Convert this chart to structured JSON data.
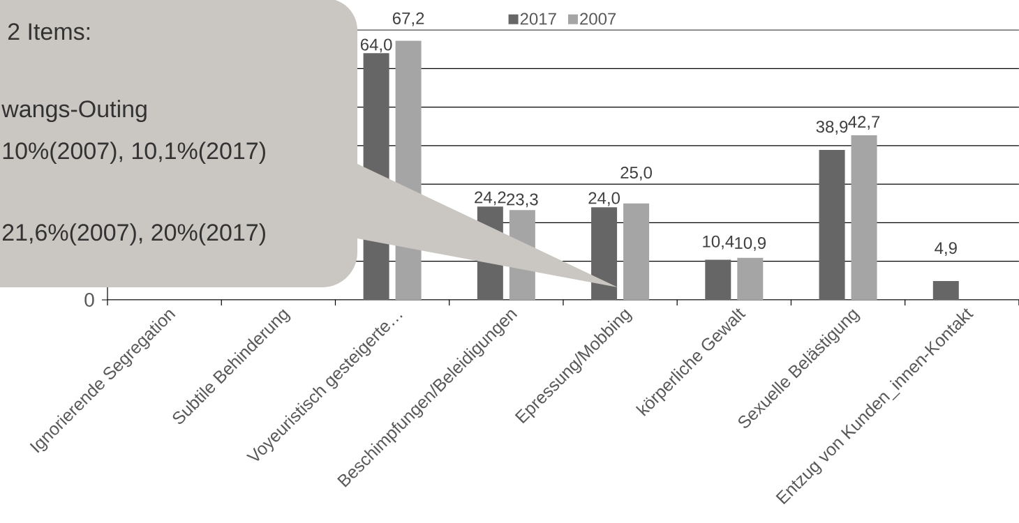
{
  "chart_data": {
    "type": "bar",
    "annotations": [
      "2 Items:",
      "wangs-Outing",
      "10%(2007), 10,1%(2017)",
      "21,6%(2007), 20%(2017)",
      "0"
    ],
    "categories": [
      "Ignorierende Segregation",
      "Subtile Behinderung",
      "Voyeuristisch gesteigerte…",
      "Beschimpfungen/Beleidigungen",
      "Epressung/Mobbing",
      "körperliche Gewalt",
      "Sexuelle Belästigung",
      "Entzug von Kunden_innen-Kontakt"
    ],
    "series": [
      {
        "name": "2017",
        "color": "#666666",
        "values": [
          null,
          null,
          64.0,
          24.2,
          24.0,
          10.4,
          38.9,
          4.9
        ],
        "value_labels": [
          null,
          null,
          "64,0",
          "24,2",
          "24,0",
          "10,4",
          "38,9",
          "4,9"
        ]
      },
      {
        "name": "2007",
        "color": "#a5a5a5",
        "values": [
          null,
          null,
          67.2,
          23.3,
          25.0,
          10.9,
          42.7,
          null
        ],
        "value_labels": [
          null,
          null,
          "67,2",
          "23,3",
          "25,0",
          "10,9",
          "42,7",
          null
        ]
      }
    ],
    "ylim": [
      0,
      70
    ],
    "yticks": [
      {
        "value": 0,
        "label": null
      },
      {
        "value": 10,
        "label": null
      },
      {
        "value": 20,
        "label": null
      },
      {
        "value": 30,
        "label": null
      },
      {
        "value": 40,
        "label": null
      },
      {
        "value": 50,
        "label": null
      },
      {
        "value": 60,
        "label": null
      },
      {
        "value": 70,
        "label": null
      }
    ],
    "grid": "y",
    "legend": "top"
  }
}
